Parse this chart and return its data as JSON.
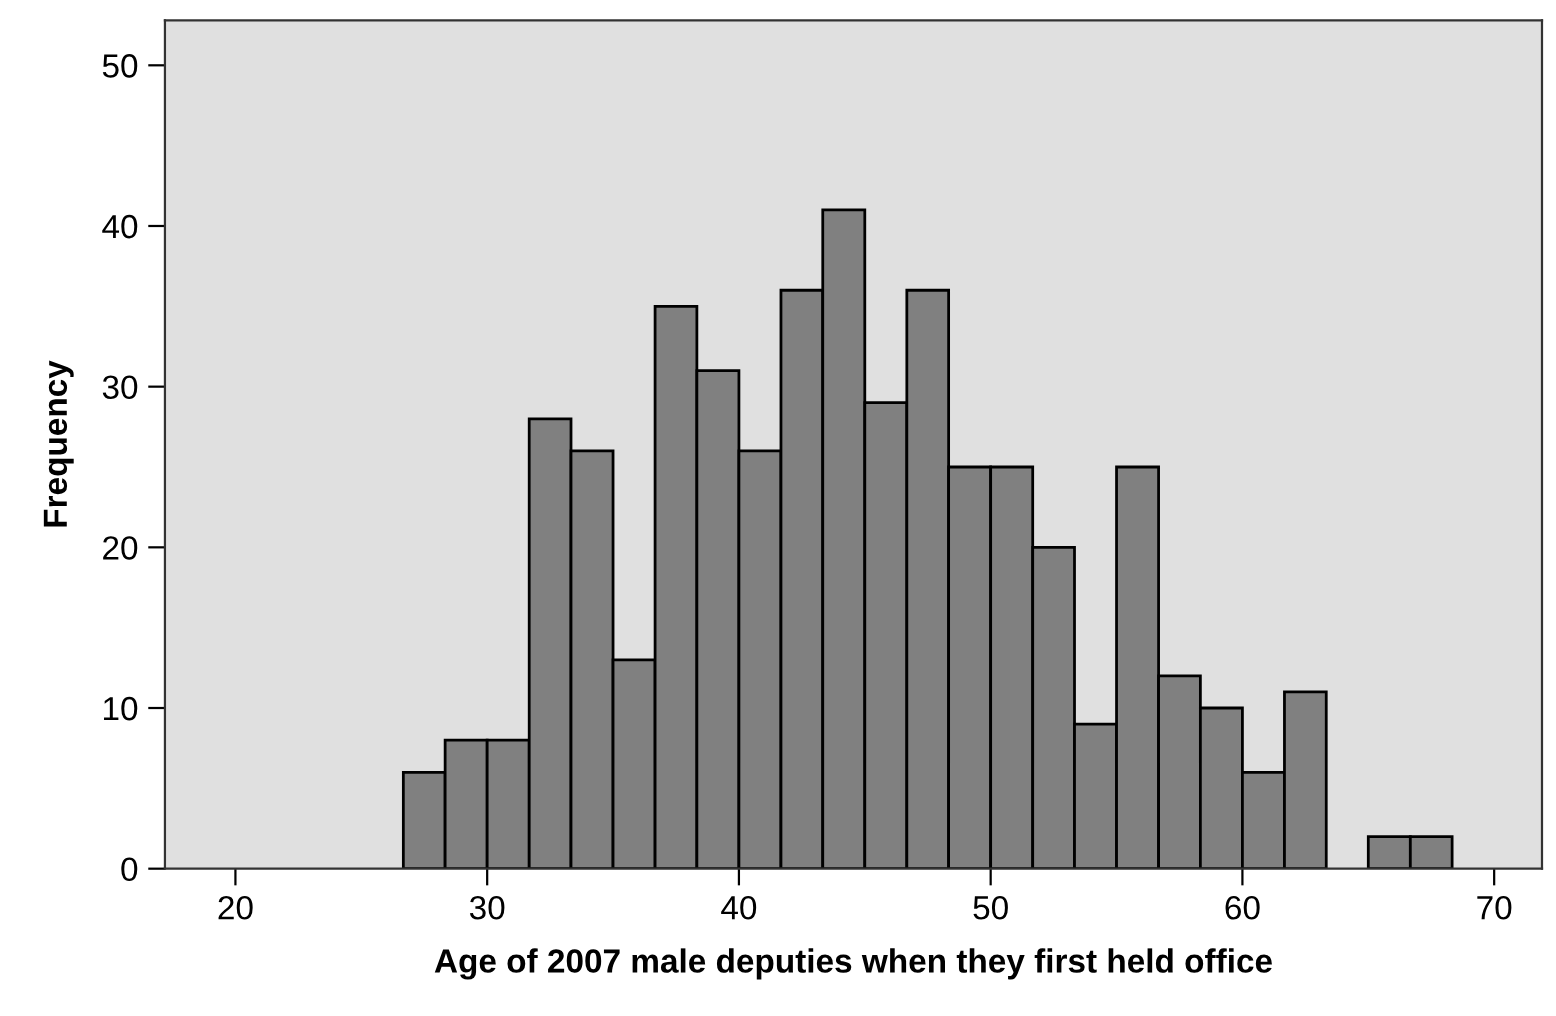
{
  "chart_data": {
    "type": "histogram",
    "xlabel": "Age of 2007 male deputies when they first held office",
    "ylabel": "Frequency",
    "bins": [
      26.67,
      28.33,
      30.0,
      31.67,
      33.33,
      35.0,
      36.67,
      38.33,
      40.0,
      41.67,
      43.33,
      45.0,
      46.67,
      48.33,
      50.0,
      51.67,
      53.33,
      55.0,
      56.67,
      58.33,
      60.0,
      61.67,
      63.33,
      65.0,
      66.67,
      68.33
    ],
    "values": [
      6,
      8,
      8,
      28,
      26,
      13,
      35,
      31,
      26,
      36,
      41,
      29,
      36,
      25,
      25,
      20,
      9,
      25,
      12,
      10,
      6,
      11,
      0,
      2,
      2
    ],
    "color": "#808080",
    "xlim": [
      17.2,
      71.9
    ],
    "ylim": [
      0,
      52.8
    ],
    "xticks": [
      20,
      30,
      40,
      50,
      60,
      70
    ],
    "yticks": [
      0,
      10,
      20,
      30,
      40,
      50
    ],
    "grid": false
  }
}
